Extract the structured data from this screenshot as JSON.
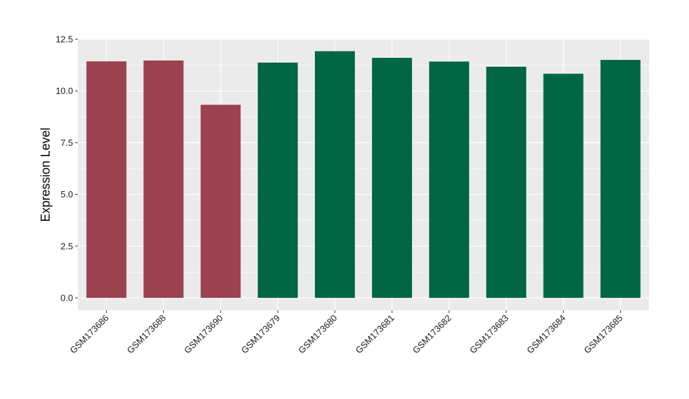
{
  "chart_data": {
    "type": "bar",
    "xlabel": "",
    "ylabel": "Expression Level",
    "ylim": [
      -0.6,
      12.5
    ],
    "yticks": [
      "0.0",
      "2.5",
      "5.0",
      "7.5",
      "10.0",
      "12.5"
    ],
    "ytick_values": [
      0,
      2.5,
      5,
      7.5,
      10,
      12.5
    ],
    "grid": true,
    "categories": [
      "GSM173686",
      "GSM173688",
      "GSM173690",
      "GSM173679",
      "GSM173680",
      "GSM173681",
      "GSM173682",
      "GSM173683",
      "GSM173684",
      "GSM173685"
    ],
    "values": [
      11.43,
      11.47,
      9.33,
      11.37,
      11.92,
      11.6,
      11.42,
      11.17,
      10.83,
      11.5
    ],
    "group_colors": [
      "#9b4150",
      "#9b4150",
      "#9b4150",
      "#006644",
      "#006644",
      "#006644",
      "#006644",
      "#006644",
      "#006644",
      "#006644"
    ],
    "panel_background": "#ebebeb",
    "grid_color": "#ffffff"
  }
}
